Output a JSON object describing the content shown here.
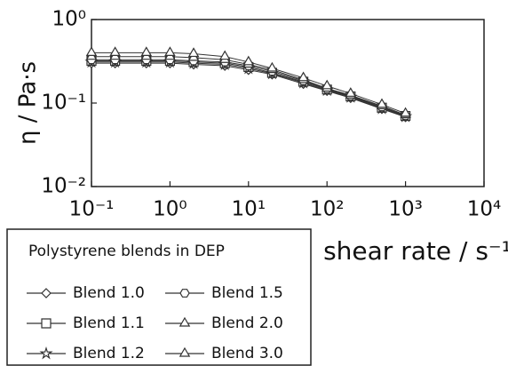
{
  "chart_data": {
    "type": "line",
    "xlabel": "shear rate / s⁻¹",
    "ylabel": "η / Pa·s",
    "legend_title": "Polystyrene blends in DEP",
    "log_x": true,
    "log_y": true,
    "grid": false,
    "xlim": [
      0.1,
      10000
    ],
    "ylim": [
      0.01,
      1
    ],
    "xticks": [
      {
        "value": 0.1,
        "label": "10⁻¹"
      },
      {
        "value": 1,
        "label": "10⁰"
      },
      {
        "value": 10,
        "label": "10¹"
      },
      {
        "value": 100,
        "label": "10²"
      },
      {
        "value": 1000,
        "label": "10³"
      },
      {
        "value": 10000,
        "label": "10⁴"
      }
    ],
    "yticks": [
      {
        "value": 0.01,
        "label": "10⁻²"
      },
      {
        "value": 0.1,
        "label": "10⁻¹"
      },
      {
        "value": 1,
        "label": "10⁰"
      }
    ],
    "x": [
      0.1,
      0.2,
      0.5,
      1,
      2,
      5,
      10,
      20,
      50,
      100,
      200,
      500,
      1000
    ],
    "series": [
      {
        "name": "Blend 1.0",
        "color": "#333333",
        "marker": "diamond",
        "values": [
          0.3,
          0.3,
          0.3,
          0.3,
          0.29,
          0.28,
          0.25,
          0.22,
          0.17,
          0.14,
          0.115,
          0.085,
          0.068
        ]
      },
      {
        "name": "Blend 1.1",
        "color": "#333333",
        "marker": "square",
        "values": [
          0.32,
          0.32,
          0.32,
          0.32,
          0.31,
          0.3,
          0.27,
          0.23,
          0.18,
          0.145,
          0.12,
          0.088,
          0.07
        ]
      },
      {
        "name": "Blend 1.2",
        "color": "#333333",
        "marker": "star",
        "values": [
          0.31,
          0.31,
          0.31,
          0.31,
          0.3,
          0.29,
          0.26,
          0.225,
          0.175,
          0.142,
          0.118,
          0.086,
          0.069
        ]
      },
      {
        "name": "Blend 1.5",
        "color": "#333333",
        "marker": "hexagon",
        "values": [
          0.33,
          0.33,
          0.33,
          0.33,
          0.32,
          0.31,
          0.28,
          0.24,
          0.185,
          0.148,
          0.122,
          0.09,
          0.071
        ]
      },
      {
        "name": "Blend 2.0",
        "color": "#333333",
        "marker": "triangle",
        "values": [
          0.36,
          0.36,
          0.36,
          0.36,
          0.35,
          0.33,
          0.29,
          0.25,
          0.19,
          0.15,
          0.124,
          0.092,
          0.072
        ]
      },
      {
        "name": "Blend 3.0",
        "color": "#333333",
        "marker": "triangle",
        "values": [
          0.4,
          0.4,
          0.4,
          0.4,
          0.39,
          0.36,
          0.31,
          0.26,
          0.2,
          0.16,
          0.13,
          0.096,
          0.075
        ]
      }
    ]
  }
}
